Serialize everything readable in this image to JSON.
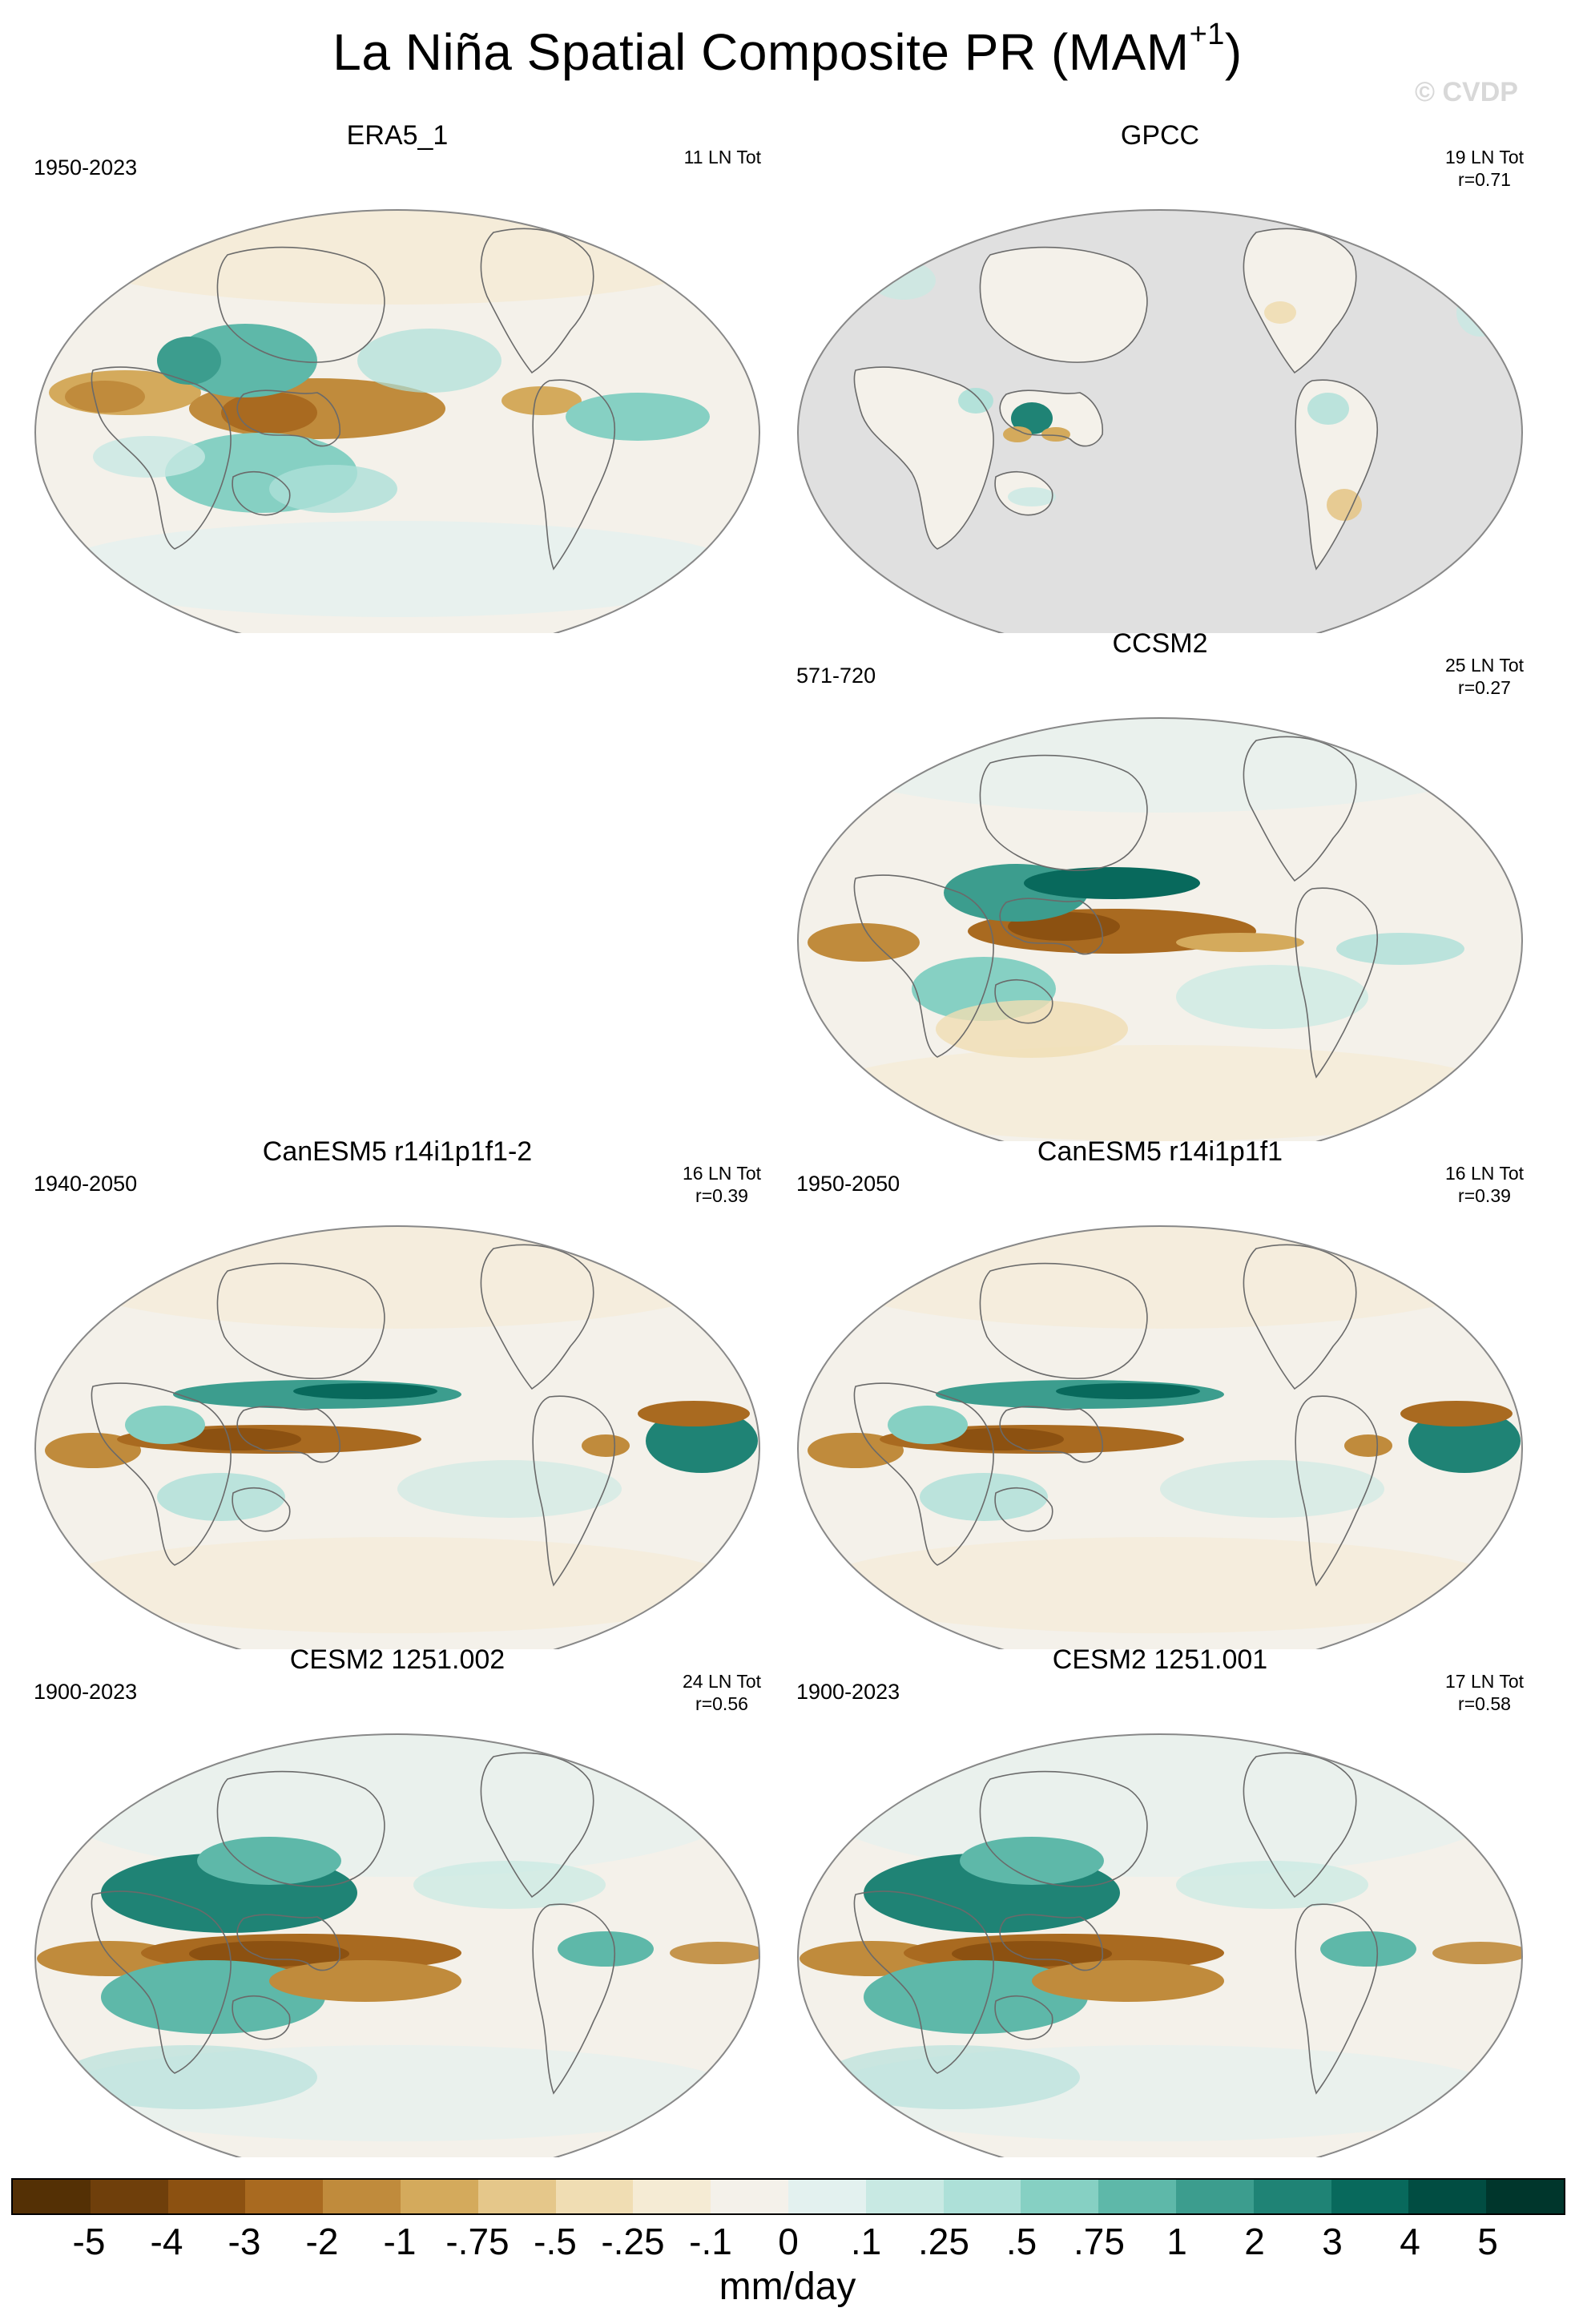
{
  "title": "La Niña Spatial Composite PR (MAM",
  "title_superscript": "+1",
  "title_suffix": ")",
  "watermark": "© CVDP",
  "panels": [
    {
      "title": "ERA5_1",
      "years": "1950-2023",
      "stats1": "11 LN Tot",
      "stats2": "",
      "kind": "era5"
    },
    {
      "title": "GPCC",
      "years": "",
      "stats1": "19 LN Tot",
      "stats2": "r=0.71",
      "kind": "gpcc"
    },
    {
      "title": "CCSM2",
      "years": "571-720",
      "stats1": "25 LN Tot",
      "stats2": "r=0.27",
      "kind": "ccsm2"
    },
    {
      "title": "CanESM5 r14i1p1f1-2",
      "years": "1940-2050",
      "stats1": "16 LN Tot",
      "stats2": "r=0.39",
      "kind": "canesm"
    },
    {
      "title": "CanESM5 r14i1p1f1",
      "years": "1950-2050",
      "stats1": "16 LN Tot",
      "stats2": "r=0.39",
      "kind": "canesm"
    },
    {
      "title": "CESM2 1251.002",
      "years": "1900-2023",
      "stats1": "24 LN Tot",
      "stats2": "r=0.56",
      "kind": "cesm"
    },
    {
      "title": "CESM2 1251.001",
      "years": "1900-2023",
      "stats1": "17 LN Tot",
      "stats2": "r=0.58",
      "kind": "cesm"
    }
  ],
  "colorbar": {
    "colors": [
      "#543005",
      "#6f3f0b",
      "#8c5111",
      "#a96a20",
      "#c08b3c",
      "#d4aa5c",
      "#e5c78a",
      "#f0ddb3",
      "#f5ebd4",
      "#f4f1ea",
      "#e3f1ef",
      "#c8e9e3",
      "#ade0d8",
      "#86d0c3",
      "#5eb8a9",
      "#3c9d8e",
      "#1f8375",
      "#08695c",
      "#014d42",
      "#00362c"
    ],
    "labels": [
      "-5",
      "-4",
      "-3",
      "-2",
      "-1",
      "-.75",
      "-.5",
      "-.25",
      "-.1",
      "0",
      ".1",
      ".25",
      ".5",
      ".75",
      "1",
      "2",
      "3",
      "4",
      "5"
    ],
    "unit": "mm/day"
  }
}
